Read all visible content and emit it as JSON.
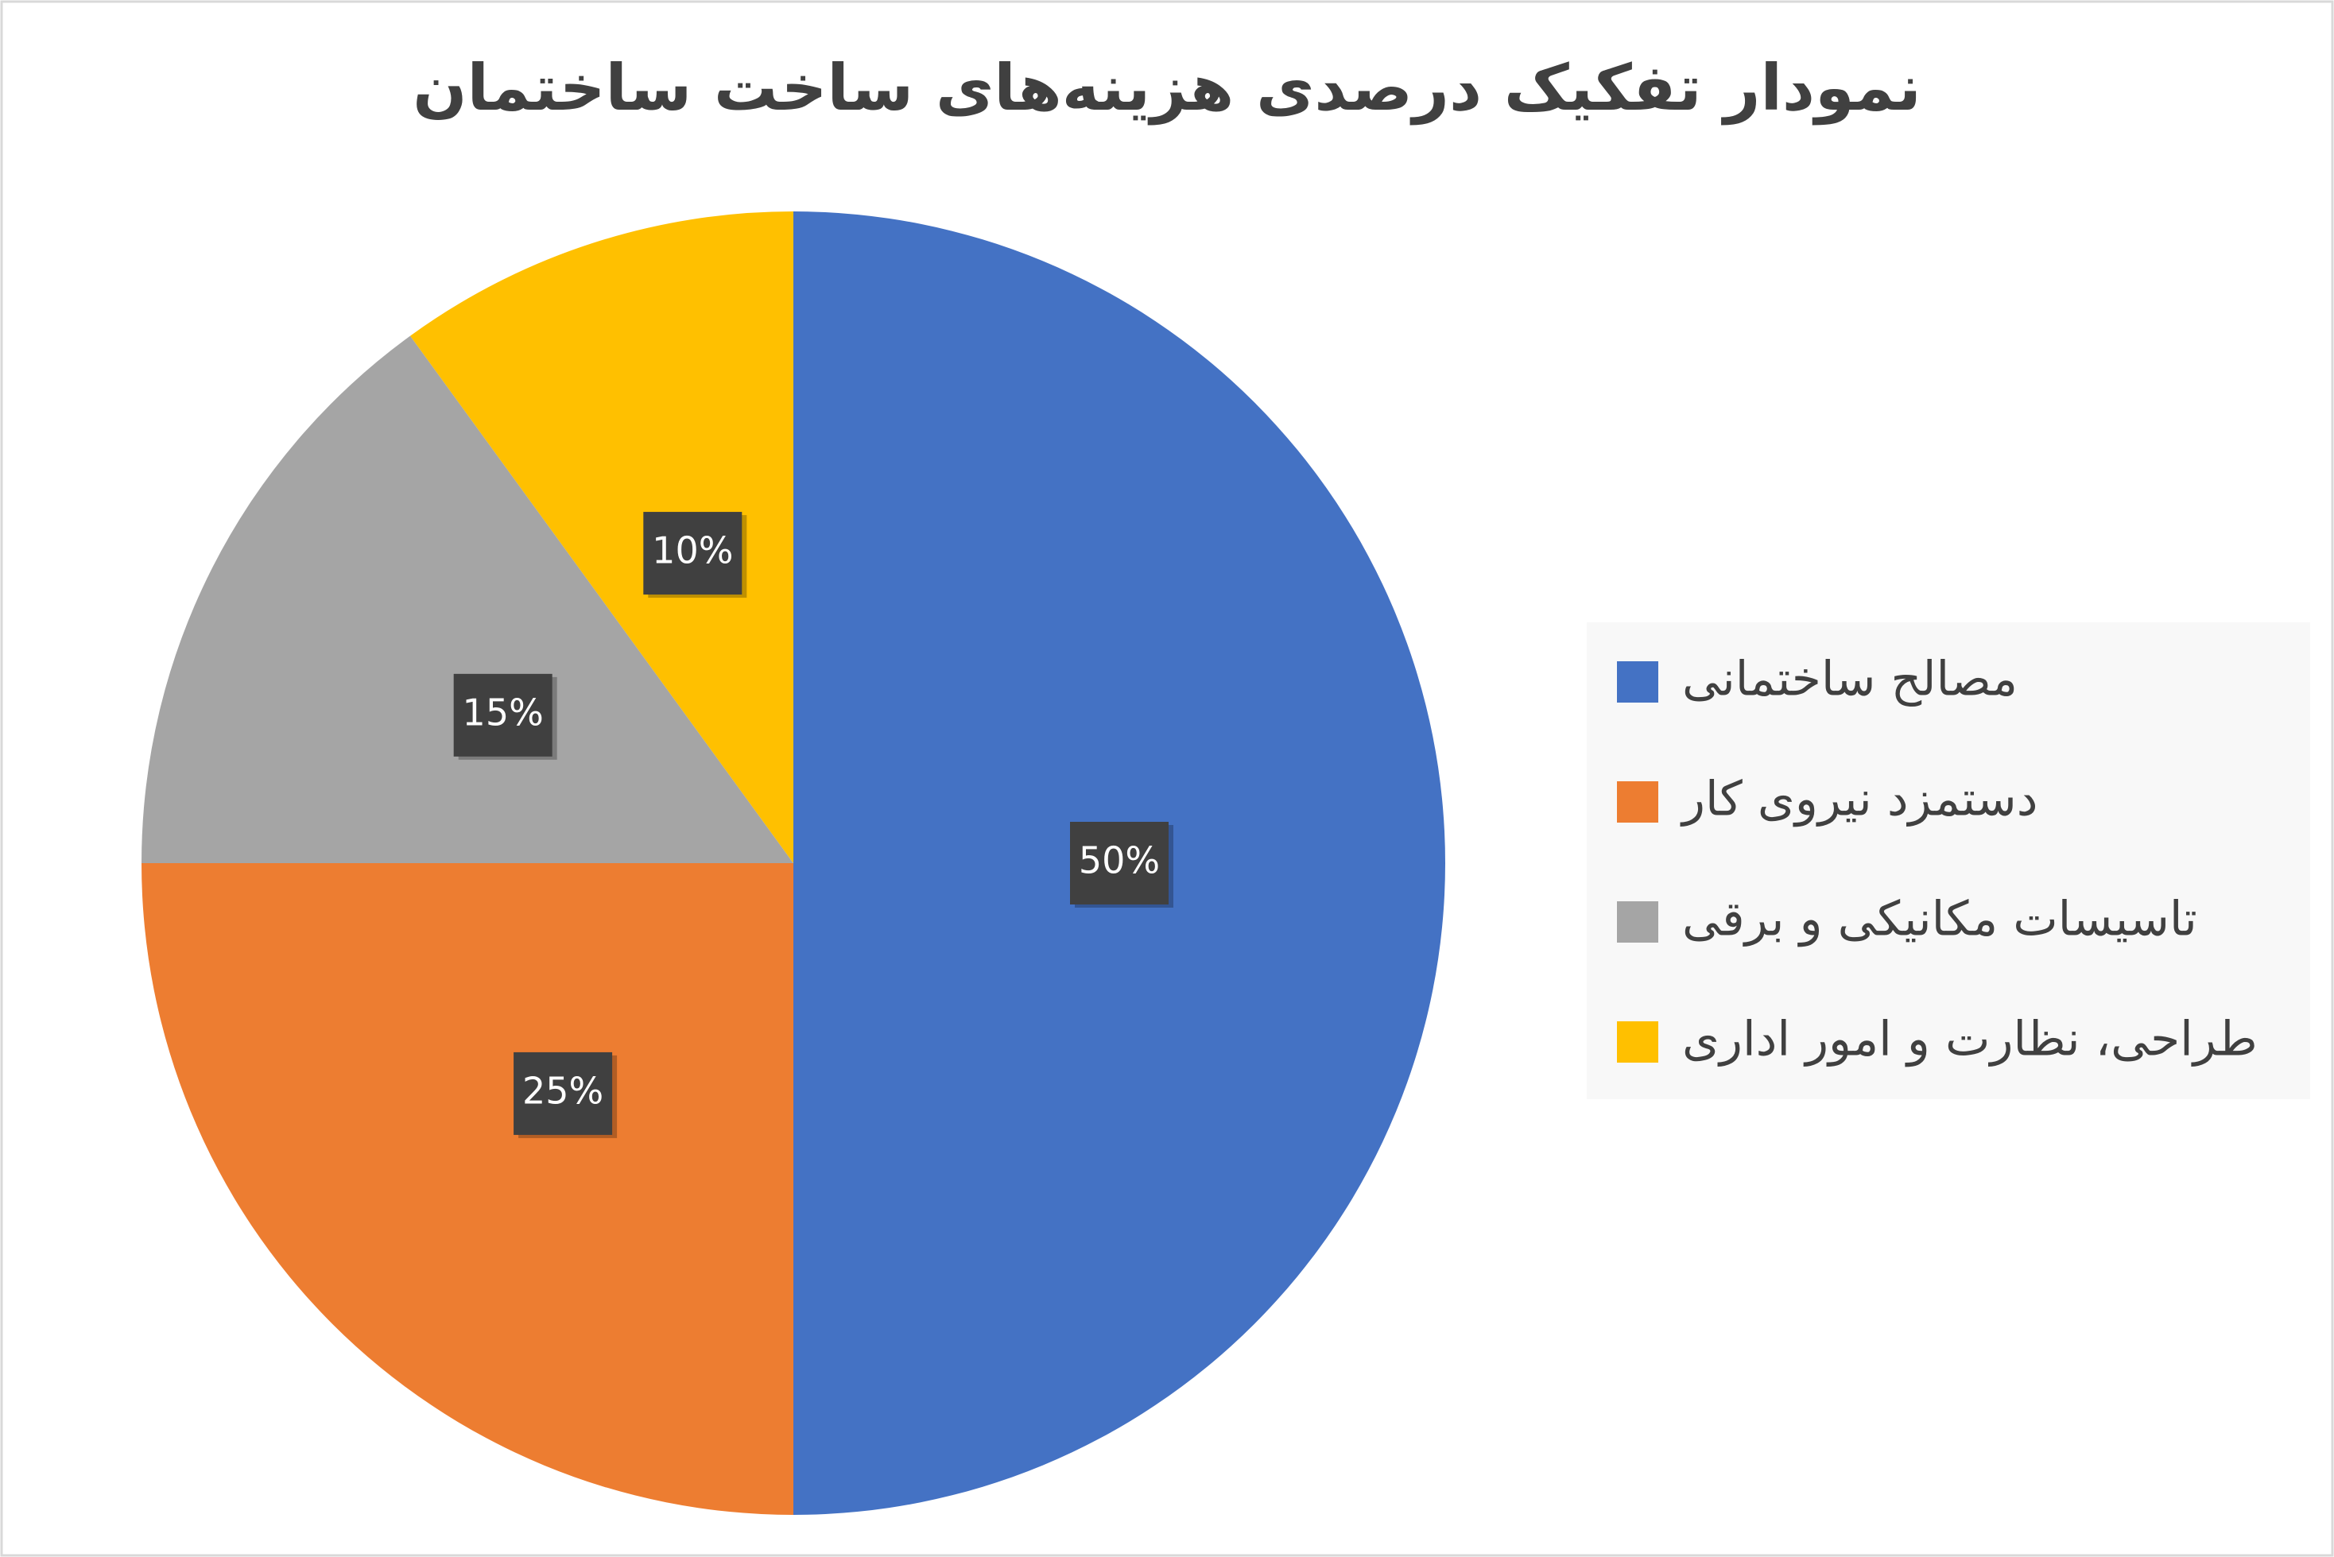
{
  "chart_data": {
    "type": "pie",
    "title": "نمودار تفکیک درصدی هزینه‌های ساخت ساختمان",
    "categories": [
      "مصالح ساختمانی",
      "دستمزد نیروی کار",
      "تاسیسات مکانیکی و برقی",
      "طراحی، نظارت و امور اداری"
    ],
    "values": [
      50,
      25,
      15,
      10
    ],
    "value_labels": [
      "50%",
      "25%",
      "15%",
      "10%"
    ],
    "colors": [
      "#4472c4",
      "#ed7d31",
      "#a5a5a5",
      "#ffc000"
    ],
    "legend": "right"
  }
}
